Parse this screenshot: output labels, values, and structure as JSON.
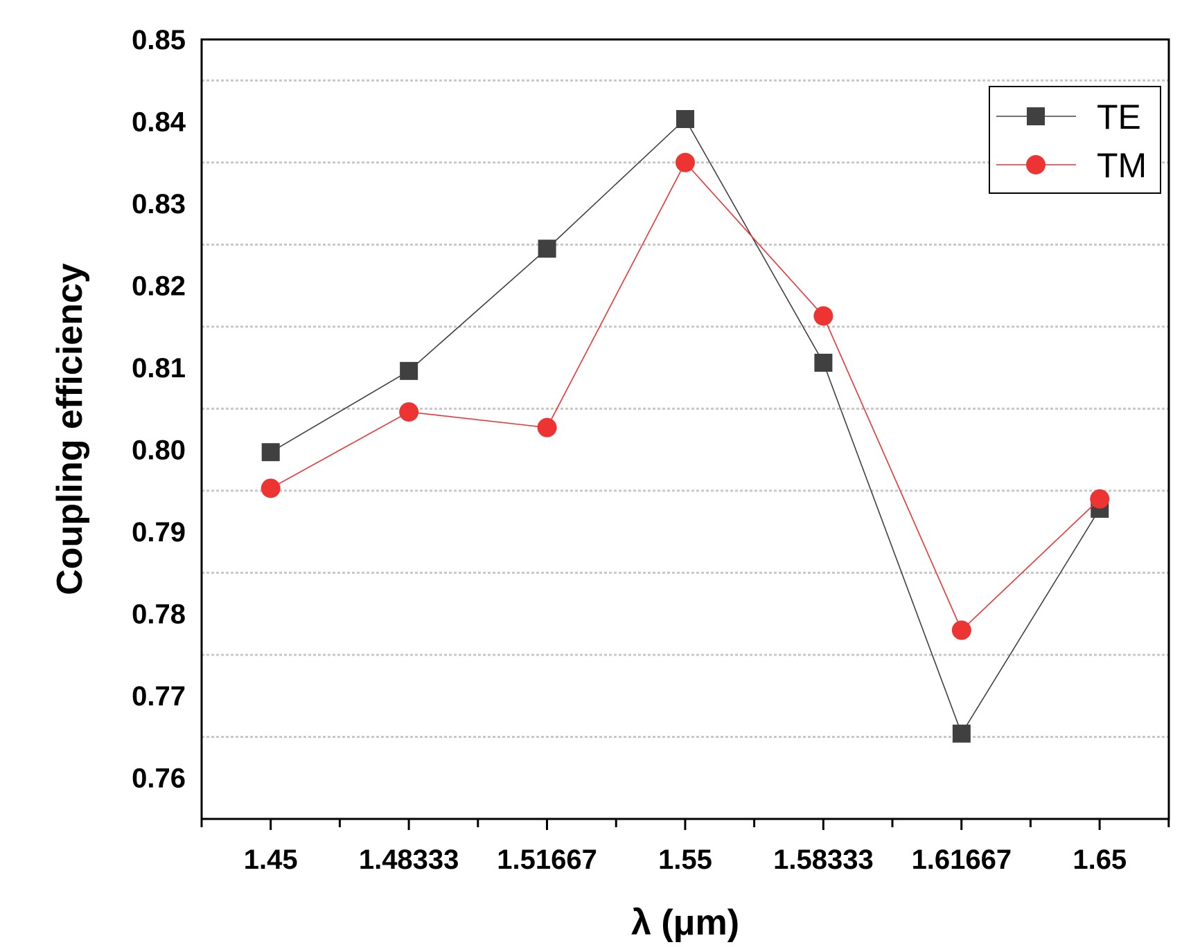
{
  "chart_data": {
    "type": "line",
    "title": "",
    "xlabel": "λ (μm)",
    "ylabel": "Coupling efficiency",
    "x": [
      1.45,
      1.48333,
      1.51667,
      1.55,
      1.58333,
      1.61667,
      1.65
    ],
    "xtick_labels": [
      "1.45",
      "1.48333",
      "1.51667",
      "1.55",
      "1.58333",
      "1.61667",
      "1.65"
    ],
    "xlim": [
      1.43333,
      1.66667
    ],
    "ylim": [
      0.755,
      0.85
    ],
    "yticks": [
      0.76,
      0.77,
      0.78,
      0.79,
      0.8,
      0.81,
      0.82,
      0.83,
      0.84,
      0.85
    ],
    "ytick_labels": [
      "0.76",
      "0.77",
      "0.78",
      "0.79",
      "0.80",
      "0.81",
      "0.82",
      "0.83",
      "0.84",
      "0.85"
    ],
    "gridlines_y": [
      0.765,
      0.775,
      0.785,
      0.795,
      0.805,
      0.815,
      0.825,
      0.835,
      0.845
    ],
    "grid": true,
    "legend_position": "top-right",
    "series": [
      {
        "name": "TE",
        "color": "#404040",
        "marker": "square",
        "values": [
          0.7997,
          0.8096,
          0.8245,
          0.8403,
          0.8106,
          0.7654,
          0.7928
        ]
      },
      {
        "name": "TM",
        "color": "#ee3333",
        "marker": "circle",
        "values": [
          0.7953,
          0.8046,
          0.8027,
          0.835,
          0.8163,
          0.778,
          0.794
        ]
      }
    ]
  }
}
